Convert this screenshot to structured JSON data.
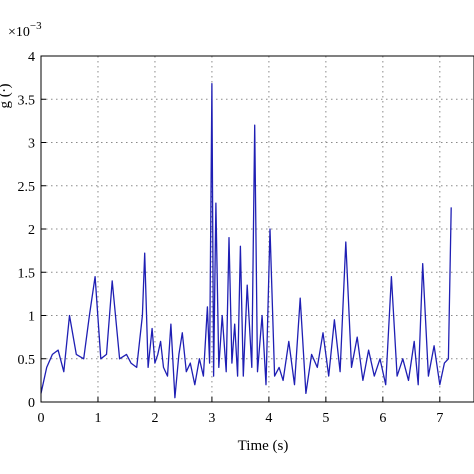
{
  "chart_data": {
    "type": "line",
    "title": "",
    "xlabel": "Time (s)",
    "ylabel_visible_fragment": "g (∙)",
    "y_exponent_label": "×10",
    "y_exponent_power": "−3",
    "xlim": [
      0,
      7.6
    ],
    "ylim": [
      0,
      4
    ],
    "xticks": [
      0,
      1,
      2,
      3,
      4,
      5,
      6,
      7
    ],
    "yticks": [
      0,
      0.5,
      1,
      1.5,
      2,
      2.5,
      3,
      3.5,
      4
    ],
    "xtick_labels": [
      "0",
      "1",
      "2",
      "3",
      "4",
      "5",
      "6",
      "7"
    ],
    "ytick_labels": [
      "0",
      "0.5",
      "1",
      "1.5",
      "2",
      "2.5",
      "3",
      "3.5",
      "4"
    ],
    "grid": true,
    "line_color": "#1f1fb4",
    "series": [
      {
        "x": [
          0.0,
          0.1,
          0.2,
          0.3,
          0.4,
          0.5,
          0.62,
          0.75,
          0.85,
          0.95,
          1.05,
          1.15,
          1.25,
          1.38,
          1.5,
          1.58,
          1.68,
          1.78,
          1.82,
          1.88,
          1.95,
          2.0,
          2.05,
          2.1,
          2.15,
          2.22,
          2.28,
          2.35,
          2.42,
          2.48,
          2.55,
          2.62,
          2.7,
          2.78,
          2.85,
          2.92,
          2.96,
          3.0,
          3.03,
          3.07,
          3.12,
          3.18,
          3.25,
          3.3,
          3.35,
          3.4,
          3.45,
          3.5,
          3.55,
          3.62,
          3.7,
          3.75,
          3.8,
          3.88,
          3.95,
          4.02,
          4.1,
          4.18,
          4.25,
          4.35,
          4.45,
          4.55,
          4.65,
          4.75,
          4.85,
          4.95,
          5.05,
          5.15,
          5.25,
          5.35,
          5.45,
          5.55,
          5.65,
          5.75,
          5.85,
          5.95,
          6.05,
          6.15,
          6.25,
          6.35,
          6.45,
          6.55,
          6.62,
          6.7,
          6.8,
          6.9,
          7.0,
          7.08,
          7.15,
          7.2
        ],
        "y": [
          0.1,
          0.4,
          0.55,
          0.6,
          0.35,
          1.0,
          0.55,
          0.5,
          1.0,
          1.45,
          0.5,
          0.55,
          1.4,
          0.5,
          0.55,
          0.45,
          0.4,
          1.0,
          1.72,
          0.4,
          0.85,
          0.45,
          0.55,
          0.7,
          0.4,
          0.3,
          0.9,
          0.05,
          0.55,
          0.8,
          0.35,
          0.45,
          0.2,
          0.5,
          0.3,
          1.1,
          0.45,
          3.68,
          0.3,
          2.3,
          0.4,
          1.0,
          0.35,
          1.9,
          0.45,
          0.9,
          0.3,
          1.8,
          0.3,
          1.35,
          0.4,
          3.2,
          0.35,
          1.0,
          0.2,
          2.0,
          0.3,
          0.4,
          0.25,
          0.7,
          0.2,
          1.2,
          0.1,
          0.55,
          0.4,
          0.8,
          0.3,
          0.95,
          0.35,
          1.85,
          0.4,
          0.75,
          0.25,
          0.6,
          0.3,
          0.5,
          0.2,
          1.45,
          0.3,
          0.5,
          0.25,
          0.7,
          0.2,
          1.6,
          0.3,
          0.65,
          0.2,
          0.45,
          0.5,
          2.25
        ]
      }
    ]
  }
}
